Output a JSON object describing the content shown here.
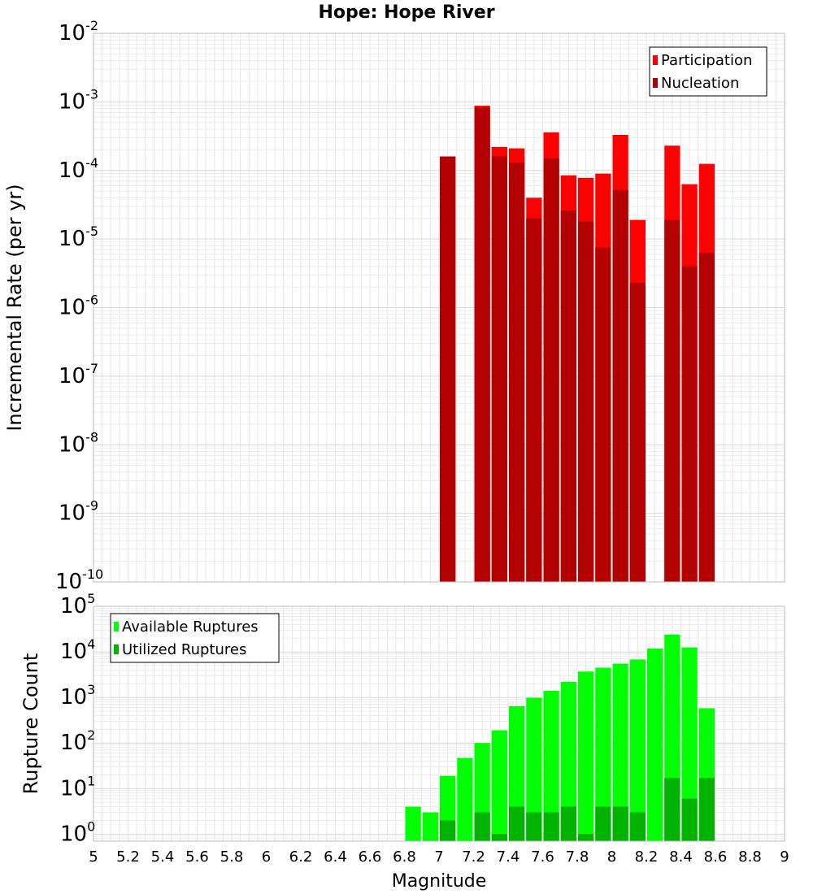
{
  "chart_data": [
    {
      "type": "bar",
      "title": "Hope: Hope River",
      "xlabel": "",
      "ylabel": "Incremental Rate (per yr)",
      "yscale": "log",
      "ylim": [
        1e-10,
        0.01
      ],
      "xlim": [
        5,
        9
      ],
      "yticks": [
        "10^-10",
        "10^-9",
        "10^-8",
        "10^-7",
        "10^-6",
        "10^-5",
        "10^-4",
        "10^-3",
        "10^-2"
      ],
      "legend_position": "top-right",
      "bin_width": 0.1,
      "x": [
        7.05,
        7.25,
        7.35,
        7.45,
        7.55,
        7.65,
        7.75,
        7.85,
        7.95,
        8.05,
        8.15,
        8.35,
        8.45,
        8.55
      ],
      "series": [
        {
          "name": "Participation",
          "color": "#ff0000",
          "values": [
            0.00016,
            0.00088,
            0.00022,
            0.00021,
            4e-05,
            0.00036,
            8.5e-05,
            7.8e-05,
            9e-05,
            0.00033,
            1.9e-05,
            0.00023,
            6.3e-05,
            0.000125
          ]
        },
        {
          "name": "Nucleation",
          "color": "#b30000",
          "values": [
            0.00016,
            0.00083,
            0.00016,
            0.00013,
            2e-05,
            0.00015,
            2.6e-05,
            1.8e-05,
            7.5e-06,
            5.2e-05,
            2.3e-06,
            1.9e-05,
            4e-06,
            6.3e-06
          ]
        }
      ]
    },
    {
      "type": "bar",
      "title": "",
      "xlabel": "Magnitude",
      "ylabel": "Rupture Count",
      "yscale": "log",
      "ylim": [
        0.7,
        100000.0
      ],
      "xlim": [
        5,
        9
      ],
      "xticks": [
        "5",
        "5.2",
        "5.4",
        "5.6",
        "5.8",
        "6",
        "6.2",
        "6.4",
        "6.6",
        "6.8",
        "7",
        "7.2",
        "7.4",
        "7.6",
        "7.8",
        "8",
        "8.2",
        "8.4",
        "8.6",
        "8.8",
        "9"
      ],
      "yticks": [
        "10^0",
        "10^1",
        "10^2",
        "10^3",
        "10^4",
        "10^5"
      ],
      "legend_position": "top-left",
      "bin_width": 0.1,
      "x": [
        6.85,
        6.95,
        7.05,
        7.15,
        7.25,
        7.35,
        7.45,
        7.55,
        7.65,
        7.75,
        7.85,
        7.95,
        8.05,
        8.15,
        8.25,
        8.35,
        8.45,
        8.55
      ],
      "series": [
        {
          "name": "Available Ruptures",
          "color": "#00ff00",
          "values": [
            4,
            3,
            19,
            47,
            100,
            190,
            640,
            980,
            1400,
            2200,
            3700,
            4500,
            5500,
            6800,
            11800,
            24000,
            12500,
            580
          ]
        },
        {
          "name": "Utilized Ruptures",
          "color": "#00b300",
          "values": [
            0,
            0,
            2,
            0,
            3,
            1,
            4,
            3,
            3,
            4,
            1,
            4,
            4,
            3,
            0,
            17,
            6,
            17
          ]
        }
      ]
    }
  ]
}
